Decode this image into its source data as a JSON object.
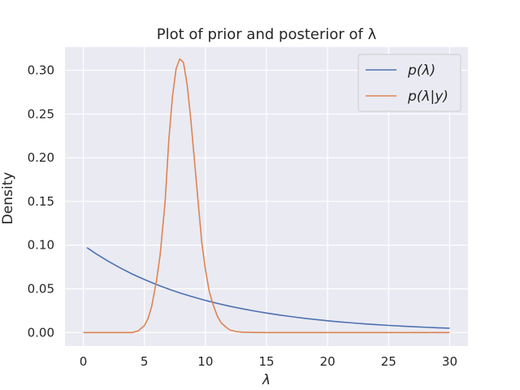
{
  "chart_data": {
    "type": "line",
    "title": "Plot of prior and posterior of λ",
    "xlabel": "λ",
    "ylabel": "Density",
    "xlim": [
      -1.5,
      31.5
    ],
    "ylim": [
      -0.0155,
      0.3265
    ],
    "xticks": [
      0,
      5,
      10,
      15,
      20,
      25,
      30
    ],
    "xtick_labels": [
      "0",
      "5",
      "10",
      "15",
      "20",
      "25",
      "30"
    ],
    "yticks": [
      0.0,
      0.05,
      0.1,
      0.15,
      0.2,
      0.25,
      0.3
    ],
    "ytick_labels": [
      "0.00",
      "0.05",
      "0.10",
      "0.15",
      "0.20",
      "0.25",
      "0.30"
    ],
    "grid": true,
    "legend_position": "top-right",
    "series": [
      {
        "name": "p(λ)",
        "color": "#4c72b0",
        "x": [
          0.3,
          1,
          2,
          3,
          4,
          5,
          6,
          7,
          8,
          9,
          10,
          11,
          12,
          13,
          14,
          15,
          16,
          17,
          18,
          19,
          20,
          21,
          22,
          23,
          24,
          25,
          26,
          27,
          28,
          29,
          30
        ],
        "y": [
          0.0971,
          0.0905,
          0.0819,
          0.0741,
          0.067,
          0.0607,
          0.0549,
          0.0497,
          0.0449,
          0.0407,
          0.0368,
          0.0333,
          0.0301,
          0.0273,
          0.0247,
          0.0223,
          0.0202,
          0.0183,
          0.0165,
          0.015,
          0.0135,
          0.0122,
          0.0111,
          0.01,
          0.0091,
          0.0082,
          0.0074,
          0.0067,
          0.0061,
          0.0055,
          0.005
        ]
      },
      {
        "name": "p(λ|y)",
        "color": "#dd8452",
        "x": [
          0,
          4,
          4.5,
          5,
          5.3,
          5.6,
          6,
          6.3,
          6.7,
          7,
          7.3,
          7.6,
          7.9,
          8.2,
          8.5,
          8.8,
          9.1,
          9.4,
          9.7,
          10,
          10.3,
          10.6,
          11,
          11.3,
          11.7,
          12,
          12.5,
          13,
          14,
          15,
          20,
          25,
          30
        ],
        "y": [
          0.0,
          0.0,
          0.002,
          0.008,
          0.016,
          0.03,
          0.06,
          0.09,
          0.15,
          0.22,
          0.27,
          0.302,
          0.313,
          0.309,
          0.284,
          0.244,
          0.197,
          0.15,
          0.103,
          0.072,
          0.048,
          0.033,
          0.018,
          0.011,
          0.006,
          0.003,
          0.0012,
          0.0005,
          0.0001,
          0.0,
          0.0,
          0.0,
          0.0
        ]
      }
    ]
  }
}
